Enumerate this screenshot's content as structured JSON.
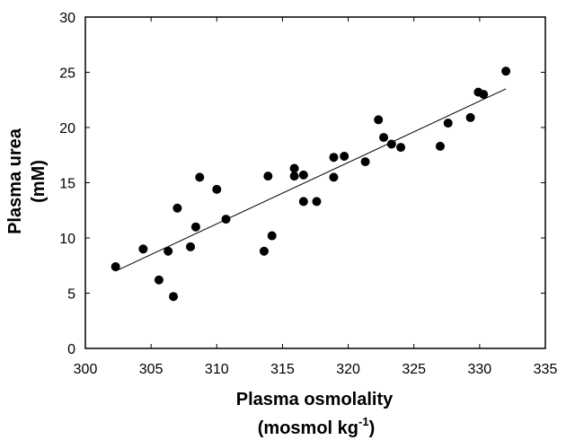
{
  "chart_data": {
    "type": "scatter",
    "title": "",
    "xlabel": "Plasma osmolality",
    "xlabel_unit_prefix": "(mosmol kg",
    "xlabel_unit_exp": "-1",
    "xlabel_unit_suffix": ")",
    "ylabel": "Plasma urea",
    "ylabel_unit": "(mM)",
    "xlim": [
      300,
      335
    ],
    "ylim": [
      0,
      30
    ],
    "xticks": [
      "300",
      "305",
      "310",
      "315",
      "320",
      "325",
      "330",
      "335"
    ],
    "yticks": [
      "0",
      "5",
      "10",
      "15",
      "20",
      "25",
      "30"
    ],
    "grid": false,
    "legend": "none",
    "marker_color": "#000000",
    "points": [
      {
        "x": 302.3,
        "y": 7.4
      },
      {
        "x": 304.4,
        "y": 9.0
      },
      {
        "x": 305.6,
        "y": 6.2
      },
      {
        "x": 306.3,
        "y": 8.8
      },
      {
        "x": 306.7,
        "y": 4.7
      },
      {
        "x": 307.0,
        "y": 12.7
      },
      {
        "x": 308.0,
        "y": 9.2
      },
      {
        "x": 308.4,
        "y": 11.0
      },
      {
        "x": 308.7,
        "y": 15.5
      },
      {
        "x": 310.0,
        "y": 14.4
      },
      {
        "x": 310.7,
        "y": 11.7
      },
      {
        "x": 313.6,
        "y": 8.8
      },
      {
        "x": 313.9,
        "y": 15.6
      },
      {
        "x": 314.2,
        "y": 10.2
      },
      {
        "x": 315.9,
        "y": 16.3
      },
      {
        "x": 315.9,
        "y": 15.6
      },
      {
        "x": 316.6,
        "y": 15.7
      },
      {
        "x": 316.6,
        "y": 13.3
      },
      {
        "x": 317.6,
        "y": 13.3
      },
      {
        "x": 318.9,
        "y": 17.3
      },
      {
        "x": 318.9,
        "y": 15.5
      },
      {
        "x": 319.7,
        "y": 17.4
      },
      {
        "x": 321.3,
        "y": 16.9
      },
      {
        "x": 322.3,
        "y": 20.7
      },
      {
        "x": 322.7,
        "y": 19.1
      },
      {
        "x": 323.3,
        "y": 18.5
      },
      {
        "x": 324.0,
        "y": 18.2
      },
      {
        "x": 327.0,
        "y": 18.3
      },
      {
        "x": 327.6,
        "y": 20.4
      },
      {
        "x": 329.3,
        "y": 20.9
      },
      {
        "x": 329.9,
        "y": 23.2
      },
      {
        "x": 330.3,
        "y": 23.0
      },
      {
        "x": 332.0,
        "y": 25.1
      }
    ],
    "regression_line": {
      "x": [
        302.3,
        332.0
      ],
      "y": [
        7.0,
        23.5
      ]
    }
  }
}
